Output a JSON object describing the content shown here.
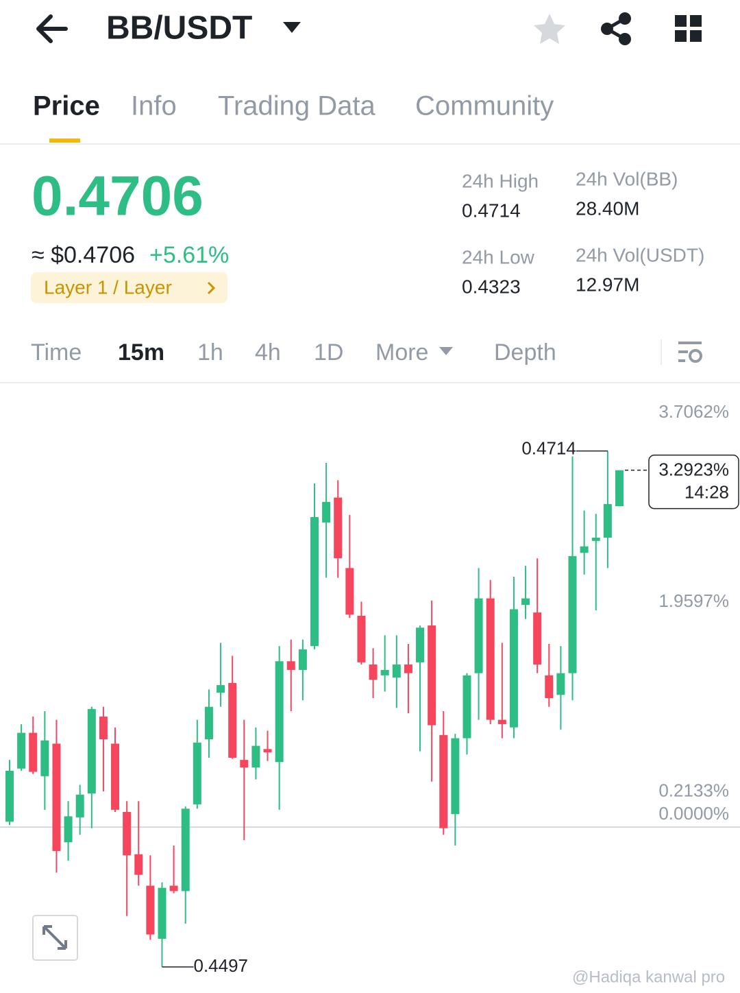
{
  "header": {
    "title": "BB/USDT"
  },
  "tabs": [
    "Price",
    "Info",
    "Trading Data",
    "Community"
  ],
  "ticker": {
    "price": "0.4706",
    "usd": "≈ $0.4706",
    "change": "+5.61%",
    "tag": "Layer 1 / Layer"
  },
  "stats": [
    {
      "label": "24h High",
      "value": "0.4714"
    },
    {
      "label": "24h Vol(BB)",
      "value": "28.40M"
    },
    {
      "label": "24h Low",
      "value": "0.4323"
    },
    {
      "label": "24h Vol(USDT)",
      "value": "12.97M"
    }
  ],
  "intervals": [
    "Time",
    "15m",
    "1h",
    "4h",
    "1D",
    "More",
    "Depth"
  ],
  "chart": {
    "type": "candlestick",
    "up_color": "#2ebd85",
    "down_color": "#f6465d",
    "open": [
      0.05,
      0.54,
      0.87,
      0.47,
      0.77,
      -0.14,
      0.09,
      0.31,
      1.02,
      0.77,
      0.14,
      -0.25,
      -0.54,
      -1.03,
      -0.54,
      -0.59,
      0.21,
      0.81,
      1.24,
      1.33,
      0.62,
      0.55,
      0.72,
      0.6,
      1.53,
      1.45,
      1.67,
      2.81,
      3.04,
      2.39,
      1.95,
      1.5,
      1.4,
      1.38,
      1.5,
      1.52,
      1.86,
      0.85,
      0.12,
      0.82,
      1.42,
      2.11,
      0.99,
      0.92,
      2.05,
      1.98,
      1.4,
      1.22,
      1.42,
      2.53,
      2.64,
      2.67,
      2.96
    ],
    "high": [
      0.62,
      0.95,
      1.02,
      1.07,
      0.99,
      0.24,
      0.39,
      1.11,
      1.11,
      0.92,
      0.24,
      0.24,
      -0.26,
      -0.51,
      -0.17,
      0.19,
      0.99,
      1.27,
      1.7,
      1.58,
      0.99,
      0.92,
      0.89,
      1.67,
      1.73,
      1.73,
      3.17,
      3.36,
      3.2,
      2.88,
      2.08,
      1.65,
      1.77,
      1.77,
      1.69,
      1.86,
      2.09,
      1.07,
      0.86,
      1.42,
      2.39,
      2.28,
      1.7,
      2.31,
      2.41,
      2.48,
      1.69,
      1.67,
      3.42,
      2.92,
      2.89,
      3.47,
      3.2923
    ],
    "low": [
      0.02,
      0.52,
      0.49,
      0.16,
      -0.42,
      -0.31,
      -0.07,
      -0.01,
      0.33,
      0.14,
      -0.82,
      -0.54,
      -1.04,
      -1.29,
      -0.61,
      -0.89,
      0.17,
      0.64,
      1.11,
      0.63,
      -0.12,
      0.44,
      0.61,
      0.16,
      1.07,
      1.17,
      1.64,
      2.3,
      2.3,
      1.93,
      1.5,
      1.19,
      1.25,
      1.1,
      1.05,
      0.7,
      0.42,
      -0.07,
      -0.17,
      0.67,
      0.99,
      0.95,
      0.82,
      0.82,
      1.92,
      1.42,
      1.11,
      0.9,
      1.17,
      2.33,
      2.0,
      2.39,
      2.96
    ],
    "close": [
      0.52,
      0.87,
      0.51,
      0.8,
      -0.22,
      0.1,
      0.3,
      1.09,
      0.81,
      0.16,
      -0.26,
      -0.44,
      -0.99,
      -0.56,
      -0.59,
      0.17,
      0.78,
      1.11,
      1.31,
      0.64,
      0.55,
      0.75,
      0.69,
      1.53,
      1.45,
      1.64,
      2.86,
      3.0,
      2.48,
      1.96,
      1.52,
      1.36,
      1.45,
      1.5,
      1.42,
      1.84,
      0.94,
      -0.01,
      0.82,
      1.4,
      2.11,
      0.99,
      0.95,
      2.01,
      2.11,
      1.5,
      1.19,
      1.42,
      2.5,
      2.59,
      2.67,
      2.98,
      3.2923
    ],
    "ylim": [
      -1.53,
      4.1
    ],
    "yticks": [
      {
        "value": 3.7062,
        "label": "3.7062%"
      },
      {
        "value": 1.9597,
        "label": "1.9597%"
      },
      {
        "value": 0.2133,
        "label": "0.2133%"
      },
      {
        "value": 0,
        "label": "0.0000%"
      }
    ],
    "last": {
      "value": 3.2923,
      "label": "3.2923%",
      "countdown": "14:28"
    },
    "high_label": "0.4714",
    "low_label": "0.4497"
  },
  "watermark": "@Hadiqa kanwal pro"
}
